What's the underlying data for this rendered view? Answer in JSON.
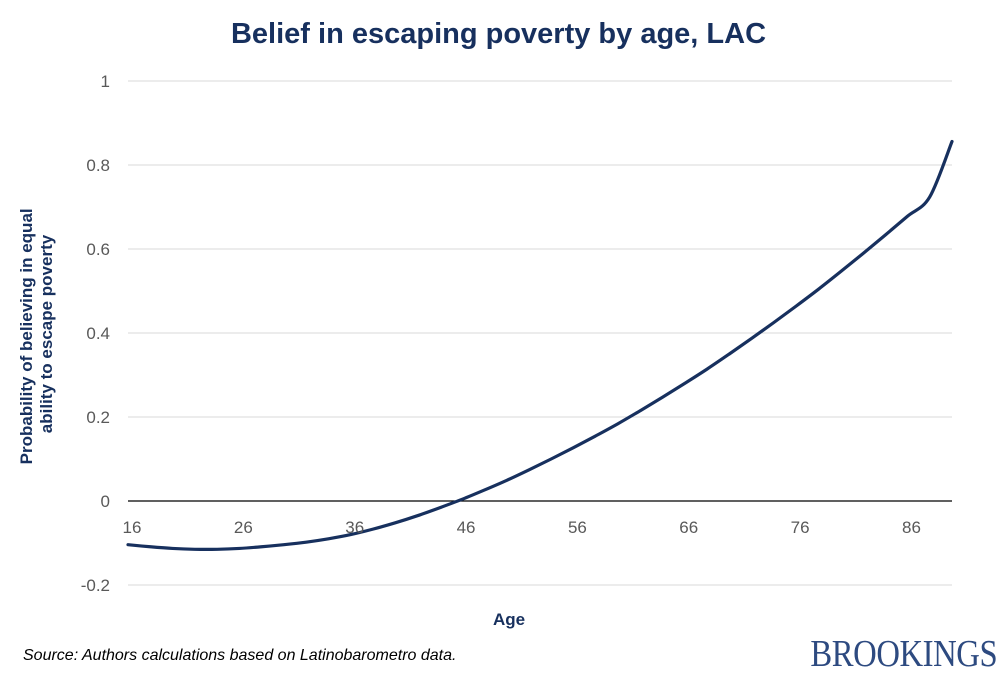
{
  "chart_data": {
    "type": "line",
    "title": "Belief in escaping poverty by age, LAC",
    "xlabel": "Age",
    "ylabel_lines": [
      "Probability of believing in equal",
      "ability to escape poverty"
    ],
    "xlim": [
      16,
      90
    ],
    "ylim": [
      -0.2,
      1
    ],
    "x_ticks": [
      16,
      26,
      36,
      46,
      56,
      66,
      76,
      86
    ],
    "y_ticks": [
      -0.2,
      0,
      0.2,
      0.4,
      0.6,
      0.8,
      1
    ],
    "y_tick_labels": [
      "-0.2",
      "0",
      "0.2",
      "0.4",
      "0.6",
      "0.8",
      "1"
    ],
    "grid": true,
    "series": [
      {
        "name": "Probability",
        "color": "#17305e",
        "x": [
          16,
          18,
          20,
          22,
          24,
          26,
          28,
          30,
          32,
          34,
          36,
          38,
          40,
          42,
          44,
          46,
          48,
          50,
          52,
          54,
          56,
          58,
          60,
          62,
          64,
          66,
          68,
          70,
          72,
          74,
          76,
          78,
          80,
          82,
          84,
          86,
          88,
          90
        ],
        "y": [
          -0.104,
          -0.109,
          -0.113,
          -0.115,
          -0.115,
          -0.113,
          -0.109,
          -0.104,
          -0.098,
          -0.09,
          -0.08,
          -0.067,
          -0.052,
          -0.035,
          -0.016,
          0.004,
          0.026,
          0.049,
          0.074,
          0.1,
          0.127,
          0.155,
          0.184,
          0.215,
          0.247,
          0.28,
          0.314,
          0.35,
          0.387,
          0.425,
          0.464,
          0.504,
          0.546,
          0.589,
          0.633,
          0.678,
          0.724,
          0.856
        ]
      }
    ]
  },
  "source_note": "Source: Authors calculations based on Latinobarometro data.",
  "brand": "BROOKINGS"
}
